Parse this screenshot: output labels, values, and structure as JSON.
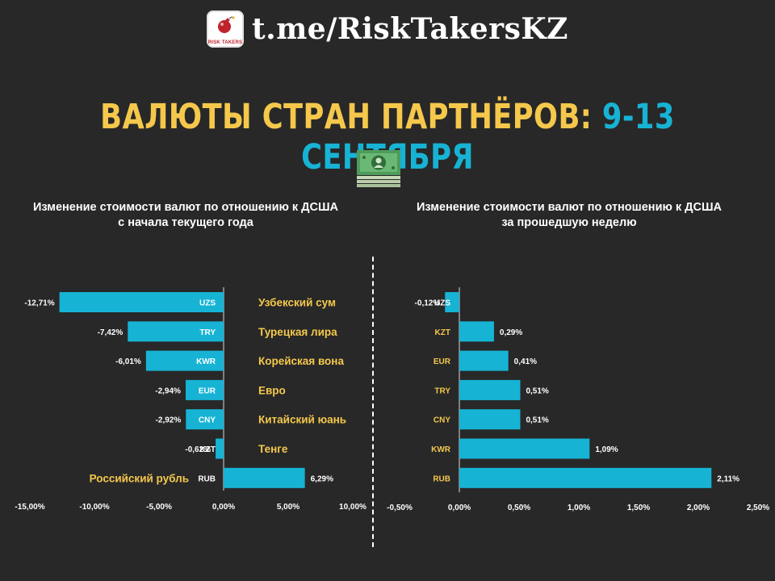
{
  "header": {
    "link": "t.me/RiskTakersKZ",
    "logo_text": "RISK TAKERS"
  },
  "title": {
    "main": "ВАЛЮТЫ СТРАН ПАРТНЁРОВ: ",
    "accent": "9-13 СЕНТЯБРЯ"
  },
  "icons": {
    "logo": "bomb-icon",
    "money": "banknote-icon"
  },
  "colors": {
    "bar": "#17b3d4",
    "label_yellow": "#f5c84c",
    "title_yellow": "#f5c84c",
    "title_accent": "#17b3d4",
    "background": "#282828"
  },
  "chart_data": [
    {
      "type": "bar",
      "orientation": "horizontal",
      "title": [
        "Изменение стоимости валют по отношению к ДСША",
        "с начала текущего года"
      ],
      "categories": [
        "UZS",
        "TRY",
        "KWR",
        "EUR",
        "CNY",
        "KZT",
        "RUB"
      ],
      "names": [
        "Узбекский сум",
        "Турецкая лира",
        "Корейская вона",
        "Евро",
        "Китайский юань",
        "Тенге",
        "Российский рубль"
      ],
      "values": [
        -12.71,
        -7.42,
        -6.01,
        -2.94,
        -2.92,
        -0.62,
        6.29
      ],
      "value_labels": [
        "-12,71%",
        "-7,42%",
        "-6,01%",
        "-2,94%",
        "-2,92%",
        "-0,62%",
        "6,29%"
      ],
      "xlim": [
        -15,
        10
      ],
      "xticks": [
        -15,
        -10,
        -5,
        0,
        5,
        10
      ],
      "xtick_labels": [
        "-15,00%",
        "-10,00%",
        "-5,00%",
        "0,00%",
        "5,00%",
        "10,00%"
      ],
      "grid": false
    },
    {
      "type": "bar",
      "orientation": "horizontal",
      "title": [
        "Изменение стоимости валют по отношению к ДСША",
        "за прошедшую неделю"
      ],
      "categories": [
        "UZS",
        "KZT",
        "EUR",
        "TRY",
        "CNY",
        "KWR",
        "RUB"
      ],
      "values": [
        -0.12,
        0.29,
        0.41,
        0.51,
        0.51,
        1.09,
        2.11
      ],
      "value_labels": [
        "-0,12%",
        "0,29%",
        "0,41%",
        "0,51%",
        "0,51%",
        "1,09%",
        "2,11%"
      ],
      "xlim": [
        -0.5,
        2.5
      ],
      "xticks": [
        -0.5,
        0,
        0.5,
        1,
        1.5,
        2,
        2.5
      ],
      "xtick_labels": [
        "-0,50%",
        "0,00%",
        "0,50%",
        "1,00%",
        "1,50%",
        "2,00%",
        "2,50%"
      ],
      "grid": false
    }
  ]
}
